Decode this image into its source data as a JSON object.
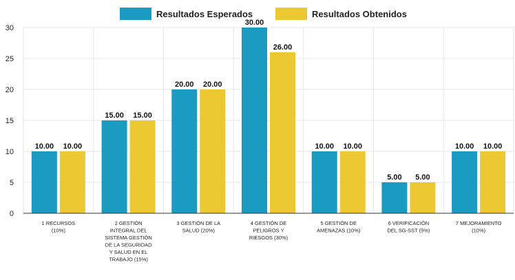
{
  "colors": {
    "esperados": "#1a9bc1",
    "obtenidos": "#ecc832",
    "grid": "#e6e6e6",
    "axis": "#333333"
  },
  "chart_data": {
    "type": "bar",
    "categories": [
      [
        "1 RECURSOS",
        "(10%)"
      ],
      [
        "2 GESTIÓN",
        "INTEGRAL DEL",
        "SISTEMA GESTIÓN",
        "DE LA SEGURIDAD",
        "Y SALUD EN EL",
        "TRABAJO (15%)"
      ],
      [
        "3 GESTIÓN DE LA",
        "SALUD (20%)"
      ],
      [
        "4 GESTIÓN DE",
        "PELIGROS Y",
        "RIESGOS (30%)"
      ],
      [
        "5 GESTIÓN DE",
        "AMENAZAS (10%)"
      ],
      [
        "6 VERIFICACIÓN",
        "DEL SG-SST (5%)"
      ],
      [
        "7 MEJORAMIENTO",
        "(10%)"
      ]
    ],
    "series": [
      {
        "name": "Resultados Esperados",
        "values": [
          10,
          15,
          20,
          30,
          10,
          5,
          10
        ],
        "labels": [
          "10.00",
          "15.00",
          "20.00",
          "30.00",
          "10.00",
          "5.00",
          "10.00"
        ]
      },
      {
        "name": "Resultados Obtenidos",
        "values": [
          10,
          15,
          20,
          26,
          10,
          5,
          10
        ],
        "labels": [
          "10.00",
          "15.00",
          "20.00",
          "26.00",
          "10.00",
          "5.00",
          "10.00"
        ]
      }
    ],
    "yticks": [
      0,
      5,
      10,
      15,
      20,
      25,
      30
    ],
    "ylim": [
      0,
      30
    ],
    "legend": "top-center",
    "grid": true
  }
}
